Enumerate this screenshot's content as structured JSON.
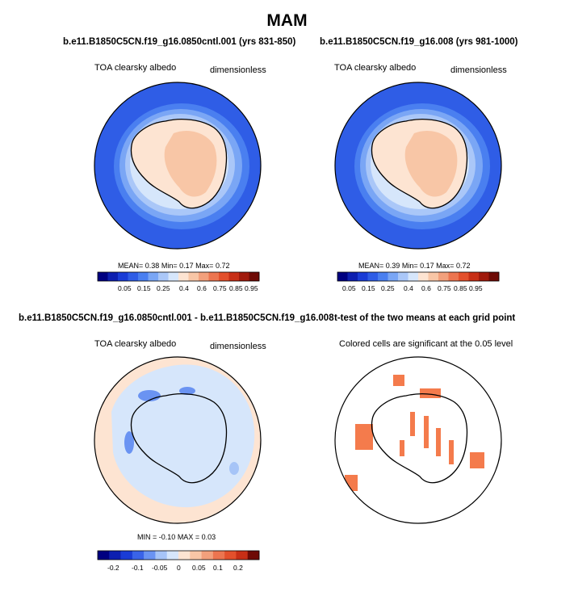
{
  "page_title": "MAM",
  "chart_data": [
    {
      "type": "heatmap",
      "title": "b.e11.B1850C5CN.f19_g16.0850cntl.001 (yrs 831-850)",
      "left_label": "TOA clearsky albedo",
      "right_label": "dimensionless",
      "stats": {
        "mean_label": "MEAN=",
        "mean": "0.38",
        "min_label": "Min=",
        "min": "0.17",
        "max_label": "Max=",
        "max": "0.72"
      },
      "colorbar": {
        "ticks": [
          "0.05",
          "0.15",
          "0.25",
          "0.4",
          "0.6",
          "0.75",
          "0.85",
          "0.95"
        ]
      }
    },
    {
      "type": "heatmap",
      "title": "b.e11.B1850C5CN.f19_g16.008 (yrs 981-1000)",
      "left_label": "TOA clearsky albedo",
      "right_label": "dimensionless",
      "stats": {
        "mean_label": "MEAN=",
        "mean": "0.39",
        "min_label": "Min=",
        "min": "0.17",
        "max_label": "Max=",
        "max": "0.72"
      },
      "colorbar": {
        "ticks": [
          "0.05",
          "0.15",
          "0.25",
          "0.4",
          "0.6",
          "0.75",
          "0.85",
          "0.95"
        ]
      }
    },
    {
      "type": "heatmap",
      "title": "b.e11.B1850C5CN.f19_g16.0850cntl.001 - b.e11.B1850C5CN.f19_g16.008",
      "left_label": "TOA clearsky albedo",
      "right_label": "dimensionless",
      "stats": {
        "min_label": "MIN =",
        "min": "-0.10",
        "max_label": "MAX =",
        "max": "0.03"
      },
      "colorbar": {
        "ticks": [
          "-0.2",
          "-0.1",
          "-0.05",
          "0",
          "0.05",
          "0.1",
          "0.2"
        ]
      }
    },
    {
      "type": "heatmap",
      "title": "t-test of the two means at each grid point",
      "center_label": "Colored cells are significant at the 0.05 level"
    }
  ],
  "colors": {
    "ocean": "#2f5de6",
    "seq_scale": [
      "#000080",
      "#0d1fb0",
      "#1a3cd6",
      "#2f5de6",
      "#4a7ff0",
      "#7aa6f5",
      "#aac7f8",
      "#d6e6fb",
      "#fde4d2",
      "#f8c6a6",
      "#f2a07c",
      "#ec7550",
      "#e3502c",
      "#c72f16",
      "#a01a0c",
      "#6e0a05"
    ],
    "diff_scale": [
      "#000080",
      "#0d1fb0",
      "#1a3cd6",
      "#3a63e8",
      "#6a93f2",
      "#a6c4f7",
      "#d6e6fb",
      "#fde4d2",
      "#f8c6a6",
      "#f2a07c",
      "#ec7550",
      "#e3502c",
      "#c72f16",
      "#6e0a05"
    ],
    "significant": "#f47b4c"
  }
}
